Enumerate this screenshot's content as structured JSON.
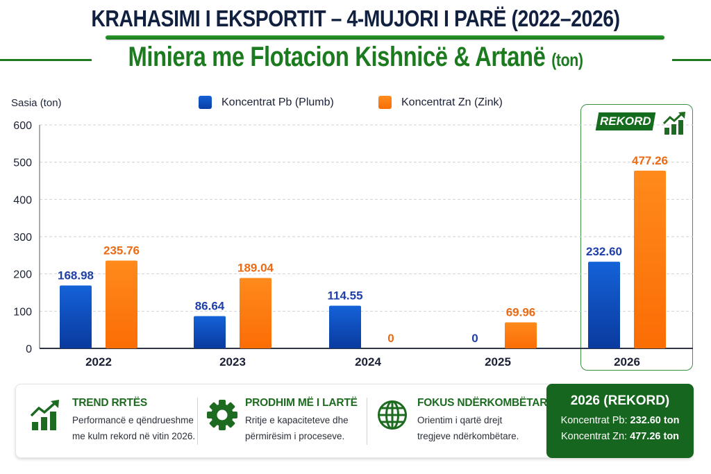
{
  "header": {
    "title": "KRAHASIMI I EKSPORTIT – 4-MUJORI I PARË (2022–2026)",
    "subtitle_main": "Miniera me Flotacion Kishnicë & Artanë",
    "subtitle_unit": "(ton)"
  },
  "chart_data": {
    "type": "bar",
    "title": "KRAHASIMI I EKSPORTIT – 4-MUJORI I PARË (2022–2026)",
    "subtitle": "Miniera me Flotacion Kishnicë & Artanë (ton)",
    "xlabel": "",
    "ylabel": "Sasia (ton)",
    "ylim": [
      0,
      600
    ],
    "yticks": [
      0,
      100,
      200,
      300,
      400,
      500,
      600
    ],
    "grid": true,
    "legend_position": "top-center",
    "categories": [
      "2022",
      "2023",
      "2024",
      "2025",
      "2026"
    ],
    "series": [
      {
        "name": "Koncentrat Pb (Plumb)",
        "color": "#0b4fc4",
        "values": [
          168.98,
          86.64,
          114.55,
          0,
          232.6
        ],
        "labels": [
          "168.98",
          "86.64",
          "114.55",
          "0",
          "232.60"
        ]
      },
      {
        "name": "Koncentrat Zn (Zink)",
        "color": "#ff7a0a",
        "values": [
          235.76,
          189.04,
          0,
          69.96,
          477.26
        ],
        "labels": [
          "235.76",
          "189.04",
          "0",
          "69.96",
          "477.26"
        ]
      }
    ],
    "annotations": [
      {
        "category": "2026",
        "text": "REKORD",
        "highlight": true
      }
    ]
  },
  "colors": {
    "pb_label": "#1f3fa8",
    "zn_label": "#ea6b14",
    "accent_green": "#1c7a1f",
    "title_navy": "#122040"
  },
  "rekord_badge": "REKORD",
  "features": [
    {
      "icon": "trend-up-chart-icon",
      "title": "TREND RRTËS",
      "line1": "Performancë e qëndrueshme",
      "line2": "me kulm rekord në vitin 2026."
    },
    {
      "icon": "gear-icon",
      "title": "PRODHIM MË I LARTË",
      "line1": "Rritje e kapaciteteve dhe",
      "line2": "përmirësim i proceseve."
    },
    {
      "icon": "globe-icon",
      "title": "FOKUS NDËRKOMBËTAR",
      "line1": "Orientim i qartë drejt",
      "line2": "tregjeve ndërkombëtare."
    }
  ],
  "record_panel": {
    "title": "2026 (REKORD)",
    "pb_label": "Koncentrat Pb:",
    "pb_value": "232.60 ton",
    "zn_label": "Koncentrat Zn:",
    "zn_value": "477.26 ton"
  }
}
